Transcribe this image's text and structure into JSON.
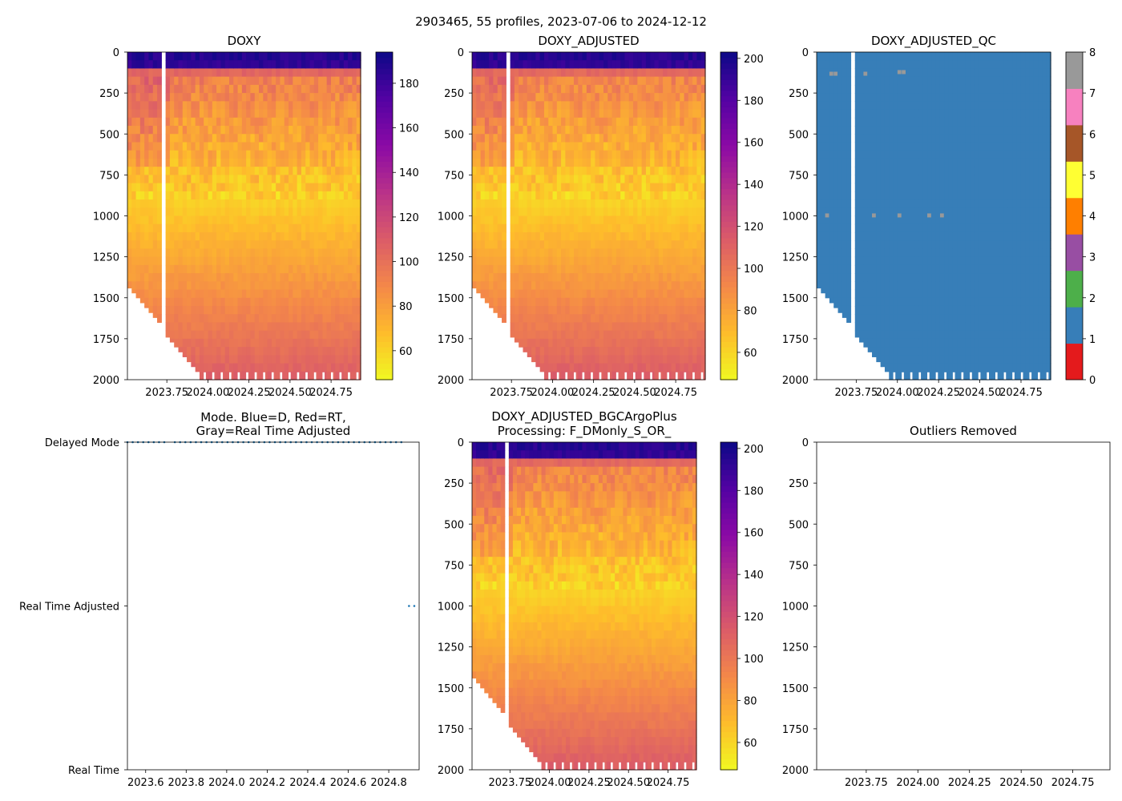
{
  "figure": {
    "suptitle": "2903465, 55 profiles, 2023-07-06 to 2024-12-12"
  },
  "chart_data": [
    {
      "id": "doxy",
      "type": "heatmap",
      "title": "DOXY",
      "xlabel": "",
      "ylabel": "",
      "xlim": [
        2023.51,
        2024.93
      ],
      "ylim": [
        2000,
        0
      ],
      "xticks": [
        2023.75,
        2024.0,
        2024.25,
        2024.5,
        2024.75
      ],
      "xtick_labels": [
        "2023.75",
        "2024.00",
        "2024.25",
        "2024.50",
        "2024.75"
      ],
      "yticks": [
        0,
        250,
        500,
        750,
        1000,
        1250,
        1500,
        1750,
        2000
      ],
      "ytick_labels": [
        "0",
        "250",
        "500",
        "750",
        "1000",
        "1250",
        "1500",
        "1750",
        "2000"
      ],
      "colormap": "plasma_r",
      "colorbar": {
        "min": 47,
        "max": 194,
        "ticks": [
          60,
          80,
          100,
          120,
          140,
          160,
          180
        ],
        "labels": [
          "60",
          "80",
          "100",
          "120",
          "140",
          "160",
          "180"
        ]
      },
      "profiles": 55,
      "surface_value": 190,
      "deep_value": 110
    },
    {
      "id": "doxy_adjusted",
      "type": "heatmap",
      "title": "DOXY_ADJUSTED",
      "xlim": [
        2023.51,
        2024.93
      ],
      "ylim": [
        2000,
        0
      ],
      "xticks": [
        2023.75,
        2024.0,
        2024.25,
        2024.5,
        2024.75
      ],
      "xtick_labels": [
        "2023.75",
        "2024.00",
        "2024.25",
        "2024.50",
        "2024.75"
      ],
      "yticks": [
        0,
        250,
        500,
        750,
        1000,
        1250,
        1500,
        1750,
        2000
      ],
      "ytick_labels": [
        "0",
        "250",
        "500",
        "750",
        "1000",
        "1250",
        "1500",
        "1750",
        "2000"
      ],
      "colormap": "plasma_r",
      "colorbar": {
        "min": 47,
        "max": 203,
        "ticks": [
          60,
          80,
          100,
          120,
          140,
          160,
          180,
          200
        ],
        "labels": [
          "60",
          "80",
          "100",
          "120",
          "140",
          "160",
          "180",
          "200"
        ]
      },
      "profiles": 55,
      "surface_value": 198,
      "deep_value": 115
    },
    {
      "id": "doxy_adjusted_qc",
      "type": "heatmap",
      "title": "DOXY_ADJUSTED_QC",
      "xlim": [
        2023.51,
        2024.93
      ],
      "ylim": [
        2000,
        0
      ],
      "xticks": [
        2023.75,
        2024.0,
        2024.25,
        2024.5,
        2024.75
      ],
      "xtick_labels": [
        "2023.75",
        "2024.00",
        "2024.25",
        "2024.50",
        "2024.75"
      ],
      "yticks": [
        0,
        250,
        500,
        750,
        1000,
        1250,
        1500,
        1750,
        2000
      ],
      "ytick_labels": [
        "0",
        "250",
        "500",
        "750",
        "1000",
        "1250",
        "1500",
        "1750",
        "2000"
      ],
      "colormap": "qc_categorical",
      "dominant_flag": 1,
      "colorbar": {
        "min": 0,
        "max": 8,
        "ticks": [
          0,
          1,
          2,
          3,
          4,
          5,
          6,
          7,
          8
        ],
        "labels": [
          "0",
          "1",
          "2",
          "3",
          "4",
          "5",
          "6",
          "7",
          "8"
        ],
        "colors": [
          "#e41a1c",
          "#377eb8",
          "#4daf4a",
          "#984ea3",
          "#ff7f00",
          "#ffff33",
          "#a65628",
          "#f781bf",
          "#999999"
        ]
      }
    },
    {
      "id": "mode",
      "type": "scatter",
      "title": "Mode. Blue=D, Red=RT,\nGray=Real Time Adjusted",
      "xlim": [
        2023.51,
        2024.95
      ],
      "ylim": [
        0,
        2
      ],
      "xticks": [
        2023.6,
        2023.8,
        2024.0,
        2024.2,
        2024.4,
        2024.6,
        2024.8
      ],
      "xtick_labels": [
        "2023.6",
        "2023.8",
        "2024.0",
        "2024.2",
        "2024.4",
        "2024.6",
        "2024.8"
      ],
      "yticks": [
        2,
        1,
        0
      ],
      "ytick_labels": [
        "Delayed Mode",
        "Real Time Adjusted",
        "Real Time"
      ],
      "series": [
        {
          "name": "Delayed Mode",
          "color": "#1f77b4",
          "y": 2,
          "x_start": 2023.51,
          "x_end": 2024.88,
          "step": 0.026,
          "gap": [
            2023.7,
            2023.73
          ]
        },
        {
          "name": "Real Time Adjusted",
          "color": "#1f77b4",
          "y": 1,
          "x_start": 2024.9,
          "x_end": 2024.95,
          "step": 0.026
        }
      ]
    },
    {
      "id": "bgc_plus",
      "type": "heatmap",
      "title": "DOXY_ADJUSTED_BGCArgoPlus\nProcessing: F_DMonly_S_OR_",
      "xlim": [
        2023.51,
        2024.93
      ],
      "ylim": [
        2000,
        0
      ],
      "xticks": [
        2023.75,
        2024.0,
        2024.25,
        2024.5,
        2024.75
      ],
      "xtick_labels": [
        "2023.75",
        "2024.00",
        "2024.25",
        "2024.50",
        "2024.75"
      ],
      "yticks": [
        0,
        250,
        500,
        750,
        1000,
        1250,
        1500,
        1750,
        2000
      ],
      "ytick_labels": [
        "0",
        "250",
        "500",
        "750",
        "1000",
        "1250",
        "1500",
        "1750",
        "2000"
      ],
      "colormap": "plasma_r",
      "colorbar": {
        "min": 47,
        "max": 203,
        "ticks": [
          60,
          80,
          100,
          120,
          140,
          160,
          180,
          200
        ],
        "labels": [
          "60",
          "80",
          "100",
          "120",
          "140",
          "160",
          "180",
          "200"
        ]
      },
      "profiles": 55,
      "surface_value": 198,
      "deep_value": 115
    },
    {
      "id": "outliers",
      "type": "scatter",
      "title": "Outliers Removed",
      "xlim": [
        2023.51,
        2024.93
      ],
      "ylim": [
        2000,
        0
      ],
      "xticks": [
        2023.75,
        2024.0,
        2024.25,
        2024.5,
        2024.75
      ],
      "xtick_labels": [
        "2023.75",
        "2024.00",
        "2024.25",
        "2024.50",
        "2024.75"
      ],
      "yticks": [
        0,
        250,
        500,
        750,
        1000,
        1250,
        1500,
        1750,
        2000
      ],
      "ytick_labels": [
        "0",
        "250",
        "500",
        "750",
        "1000",
        "1250",
        "1500",
        "1750",
        "2000"
      ],
      "series": []
    }
  ]
}
